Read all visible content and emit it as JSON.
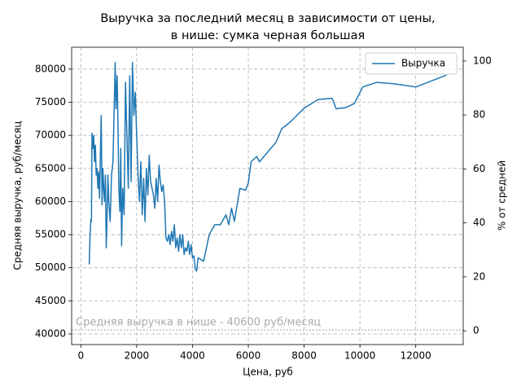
{
  "chart_data": {
    "type": "line",
    "title": [
      "Выручка за последний месяц в зависимости от цены,",
      "в нише: сумка черная большая"
    ],
    "xlabel": "Цена, руб",
    "ylabel": "Средняя выручка, руб/месяц",
    "y2label": "% от средней",
    "x": [
      300,
      330,
      360,
      380,
      400,
      430,
      460,
      490,
      520,
      550,
      580,
      610,
      640,
      670,
      700,
      730,
      760,
      790,
      820,
      850,
      880,
      910,
      940,
      970,
      1000,
      1050,
      1100,
      1150,
      1200,
      1230,
      1260,
      1300,
      1330,
      1360,
      1400,
      1430,
      1460,
      1500,
      1550,
      1600,
      1650,
      1700,
      1750,
      1800,
      1850,
      1900,
      1950,
      2000,
      2050,
      2100,
      2150,
      2200,
      2250,
      2300,
      2350,
      2400,
      2450,
      2500,
      2550,
      2600,
      2650,
      2700,
      2750,
      2800,
      2850,
      2900,
      2950,
      3000,
      3050,
      3100,
      3150,
      3200,
      3250,
      3300,
      3350,
      3400,
      3450,
      3500,
      3550,
      3600,
      3650,
      3700,
      3750,
      3800,
      3850,
      3900,
      3950,
      4000,
      4050,
      4100,
      4150,
      4200,
      4400,
      4600,
      4800,
      5000,
      5200,
      5300,
      5400,
      5500,
      5700,
      5900,
      6000,
      6100,
      6300,
      6400,
      6600,
      6800,
      7000,
      7200,
      7500,
      8000,
      8500,
      9000,
      9150,
      9500,
      9800,
      10100,
      10600,
      11200,
      12000,
      13100
    ],
    "series": [
      {
        "name": "Выручка",
        "color": "#1f77b4",
        "values": [
          50500,
          55000,
          57300,
          57000,
          70300,
          68000,
          70000,
          66000,
          68500,
          64000,
          65000,
          62000,
          64500,
          60500,
          67000,
          73000,
          59500,
          65000,
          62000,
          60000,
          64000,
          53000,
          58000,
          64000,
          60000,
          57000,
          64000,
          66000,
          75000,
          81000,
          74000,
          79000,
          72000,
          62000,
          58500,
          68000,
          53300,
          62000,
          58000,
          78000,
          70000,
          62000,
          79000,
          63000,
          81000,
          73000,
          76500,
          70000,
          64000,
          60000,
          66000,
          58000,
          63500,
          57000,
          65000,
          61000,
          67000,
          63000,
          62000,
          61000,
          59000,
          63500,
          60000,
          65500,
          63000,
          61500,
          62500,
          60000,
          54500,
          54000,
          55000,
          53500,
          55500,
          54000,
          56500,
          53000,
          54500,
          52500,
          55000,
          53000,
          55000,
          52000,
          53000,
          52500,
          54000,
          52000,
          53500,
          51500,
          51800,
          49800,
          49500,
          51500,
          51000,
          55000,
          56500,
          56500,
          58000,
          56500,
          59000,
          57000,
          62000,
          61700,
          62800,
          66000,
          66800,
          66000,
          67000,
          68000,
          69000,
          71000,
          72000,
          74100,
          75400,
          75600,
          74000,
          74200,
          74800,
          77300,
          78000,
          77800,
          77300,
          79100
        ]
      }
    ],
    "xlim": [
      -330,
      13700
    ],
    "xticks": [
      0,
      2000,
      4000,
      6000,
      8000,
      10000,
      12000
    ],
    "ylim": [
      38400,
      83300
    ],
    "yticks": [
      40000,
      45000,
      50000,
      55000,
      60000,
      65000,
      70000,
      75000,
      80000
    ],
    "y2lim": [
      -5.1,
      105.1
    ],
    "y2ticks": [
      0,
      20,
      40,
      60,
      80,
      100
    ],
    "hline": {
      "value": 40600,
      "label": "Средняя выручка в нише - 40600 руб/месяц",
      "color": "#aaaaaa"
    },
    "grid": true,
    "legend": "upper right"
  }
}
